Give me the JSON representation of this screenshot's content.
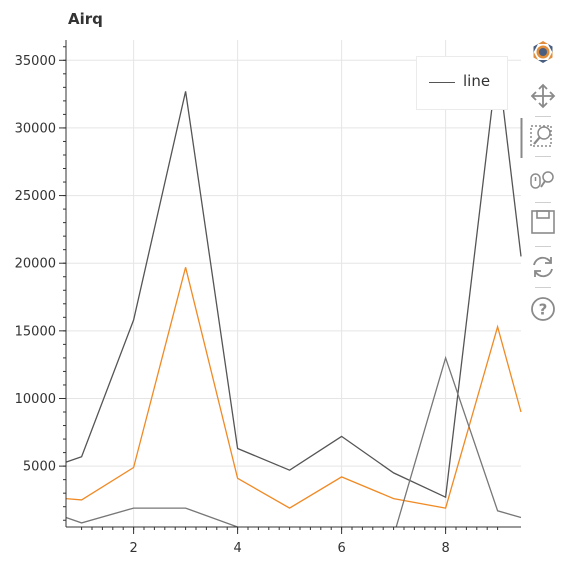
{
  "chart_data": {
    "type": "line",
    "title": "Airq",
    "xlabel": "",
    "ylabel": "",
    "xlim": [
      0.7,
      9.45
    ],
    "ylim": [
      500,
      36500
    ],
    "grid": true,
    "x_ticks": [
      2,
      4,
      6,
      8
    ],
    "y_ticks": [
      5000,
      10000,
      15000,
      20000,
      25000,
      30000,
      35000
    ],
    "legend": {
      "placement": "top-right",
      "entries": [
        "line"
      ]
    },
    "series": [
      {
        "name": "line",
        "color": "#555555",
        "x": [
          0.7,
          1,
          2,
          3,
          4,
          5,
          6,
          7,
          8,
          9,
          9.45
        ],
        "y": [
          5300,
          5700,
          15800,
          32700,
          6300,
          4700,
          7200,
          4500,
          2700,
          35000,
          20500
        ]
      },
      {
        "color": "#f08a24",
        "x": [
          0.7,
          1,
          2,
          3,
          4,
          5,
          6,
          7,
          8,
          9,
          9.45
        ],
        "y": [
          2600,
          2500,
          4900,
          19700,
          4100,
          1900,
          4200,
          2600,
          1900,
          15300,
          9000
        ]
      },
      {
        "color": "#777777",
        "x": [
          0.7,
          1,
          2,
          3,
          4
        ],
        "y": [
          1200,
          800,
          1900,
          1900,
          500
        ]
      },
      {
        "color": "#777777",
        "x": [
          7.05,
          8,
          9,
          9.45
        ],
        "y": [
          500,
          13000,
          1700,
          1200
        ]
      }
    ]
  },
  "toolbar": {
    "tools": [
      "bokeh-logo-icon",
      "pan-icon",
      "box-zoom-icon",
      "wheel-zoom-icon",
      "save-icon",
      "reset-icon",
      "help-icon"
    ]
  }
}
